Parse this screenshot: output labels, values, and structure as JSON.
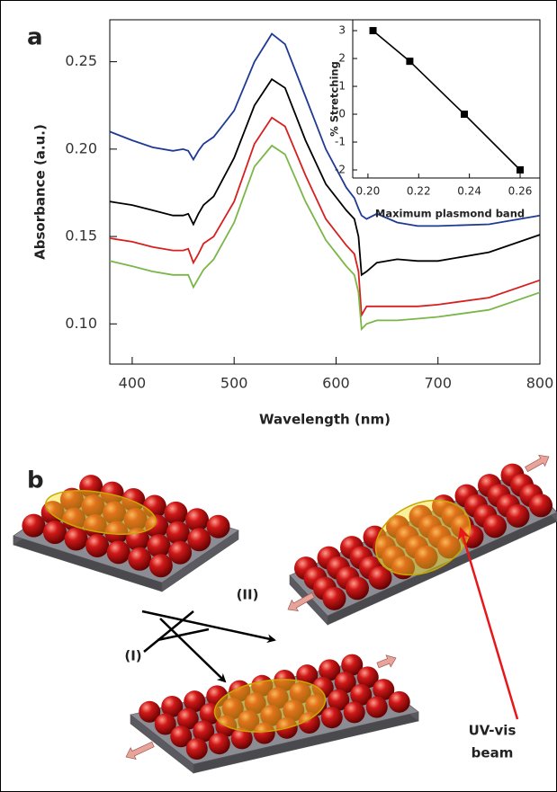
{
  "panel_labels": [
    "a",
    "b"
  ],
  "chart_data": [
    {
      "type": "line",
      "xlabel": "Wavelength (nm)",
      "ylabel": "Absorbance (a.u.)",
      "x": [
        378,
        400,
        420,
        440,
        450,
        455,
        460,
        465,
        470,
        480,
        500,
        520,
        537,
        550,
        570,
        590,
        610,
        618,
        622,
        625,
        630,
        640,
        660,
        680,
        700,
        750,
        800
      ],
      "series": [
        {
          "color": "#1f3a93",
          "values": [
            0.21,
            0.205,
            0.201,
            0.199,
            0.2,
            0.199,
            0.194,
            0.199,
            0.203,
            0.207,
            0.222,
            0.25,
            0.266,
            0.26,
            0.23,
            0.2,
            0.178,
            0.172,
            0.166,
            0.162,
            0.16,
            0.163,
            0.158,
            0.156,
            0.156,
            0.157,
            0.162
          ]
        },
        {
          "color": "#000000",
          "values": [
            0.17,
            0.168,
            0.165,
            0.162,
            0.162,
            0.163,
            0.157,
            0.163,
            0.168,
            0.173,
            0.195,
            0.225,
            0.24,
            0.235,
            0.205,
            0.18,
            0.165,
            0.16,
            0.15,
            0.128,
            0.13,
            0.135,
            0.137,
            0.136,
            0.136,
            0.141,
            0.151
          ]
        },
        {
          "color": "#d62020",
          "values": [
            0.149,
            0.147,
            0.144,
            0.142,
            0.142,
            0.143,
            0.135,
            0.14,
            0.146,
            0.15,
            0.17,
            0.203,
            0.218,
            0.213,
            0.185,
            0.16,
            0.145,
            0.14,
            0.13,
            0.105,
            0.11,
            0.11,
            0.11,
            0.11,
            0.111,
            0.115,
            0.125
          ]
        },
        {
          "color": "#7ab648",
          "values": [
            0.136,
            0.133,
            0.13,
            0.128,
            0.128,
            0.128,
            0.121,
            0.126,
            0.131,
            0.137,
            0.158,
            0.19,
            0.202,
            0.197,
            0.17,
            0.148,
            0.133,
            0.128,
            0.118,
            0.097,
            0.1,
            0.102,
            0.102,
            0.103,
            0.104,
            0.108,
            0.118
          ]
        }
      ],
      "xlim": [
        378,
        800
      ],
      "xticks": [
        400,
        500,
        600,
        700,
        800
      ],
      "ylim": [
        0.077,
        0.274
      ],
      "yticks": [
        {
          "value": 0.1,
          "label": "0.10"
        },
        0.15,
        {
          "value": 0.2,
          "label": "0.20"
        },
        0.25
      ]
    },
    {
      "type": "line",
      "marker": "square",
      "xlabel": "Maximum plasmond band",
      "ylabel": "% Stretching",
      "x": [
        0.202,
        0.2165,
        0.238,
        0.26
      ],
      "series": [
        {
          "color": "#000000",
          "values": [
            3,
            1.9,
            0,
            -2
          ]
        }
      ],
      "xlim": [
        0.194,
        0.2678
      ],
      "xticks": [
        {
          "value": 0.2,
          "label": "0.20"
        },
        0.22,
        0.24,
        0.26
      ],
      "ylim": [
        -2.29,
        3.39
      ],
      "yticks": [
        -2,
        -1,
        0,
        1,
        2,
        3
      ]
    }
  ],
  "diagram": {
    "step_labels": [
      "(II)",
      "(I)"
    ],
    "beam_label": [
      "UV-vis",
      "beam"
    ]
  }
}
